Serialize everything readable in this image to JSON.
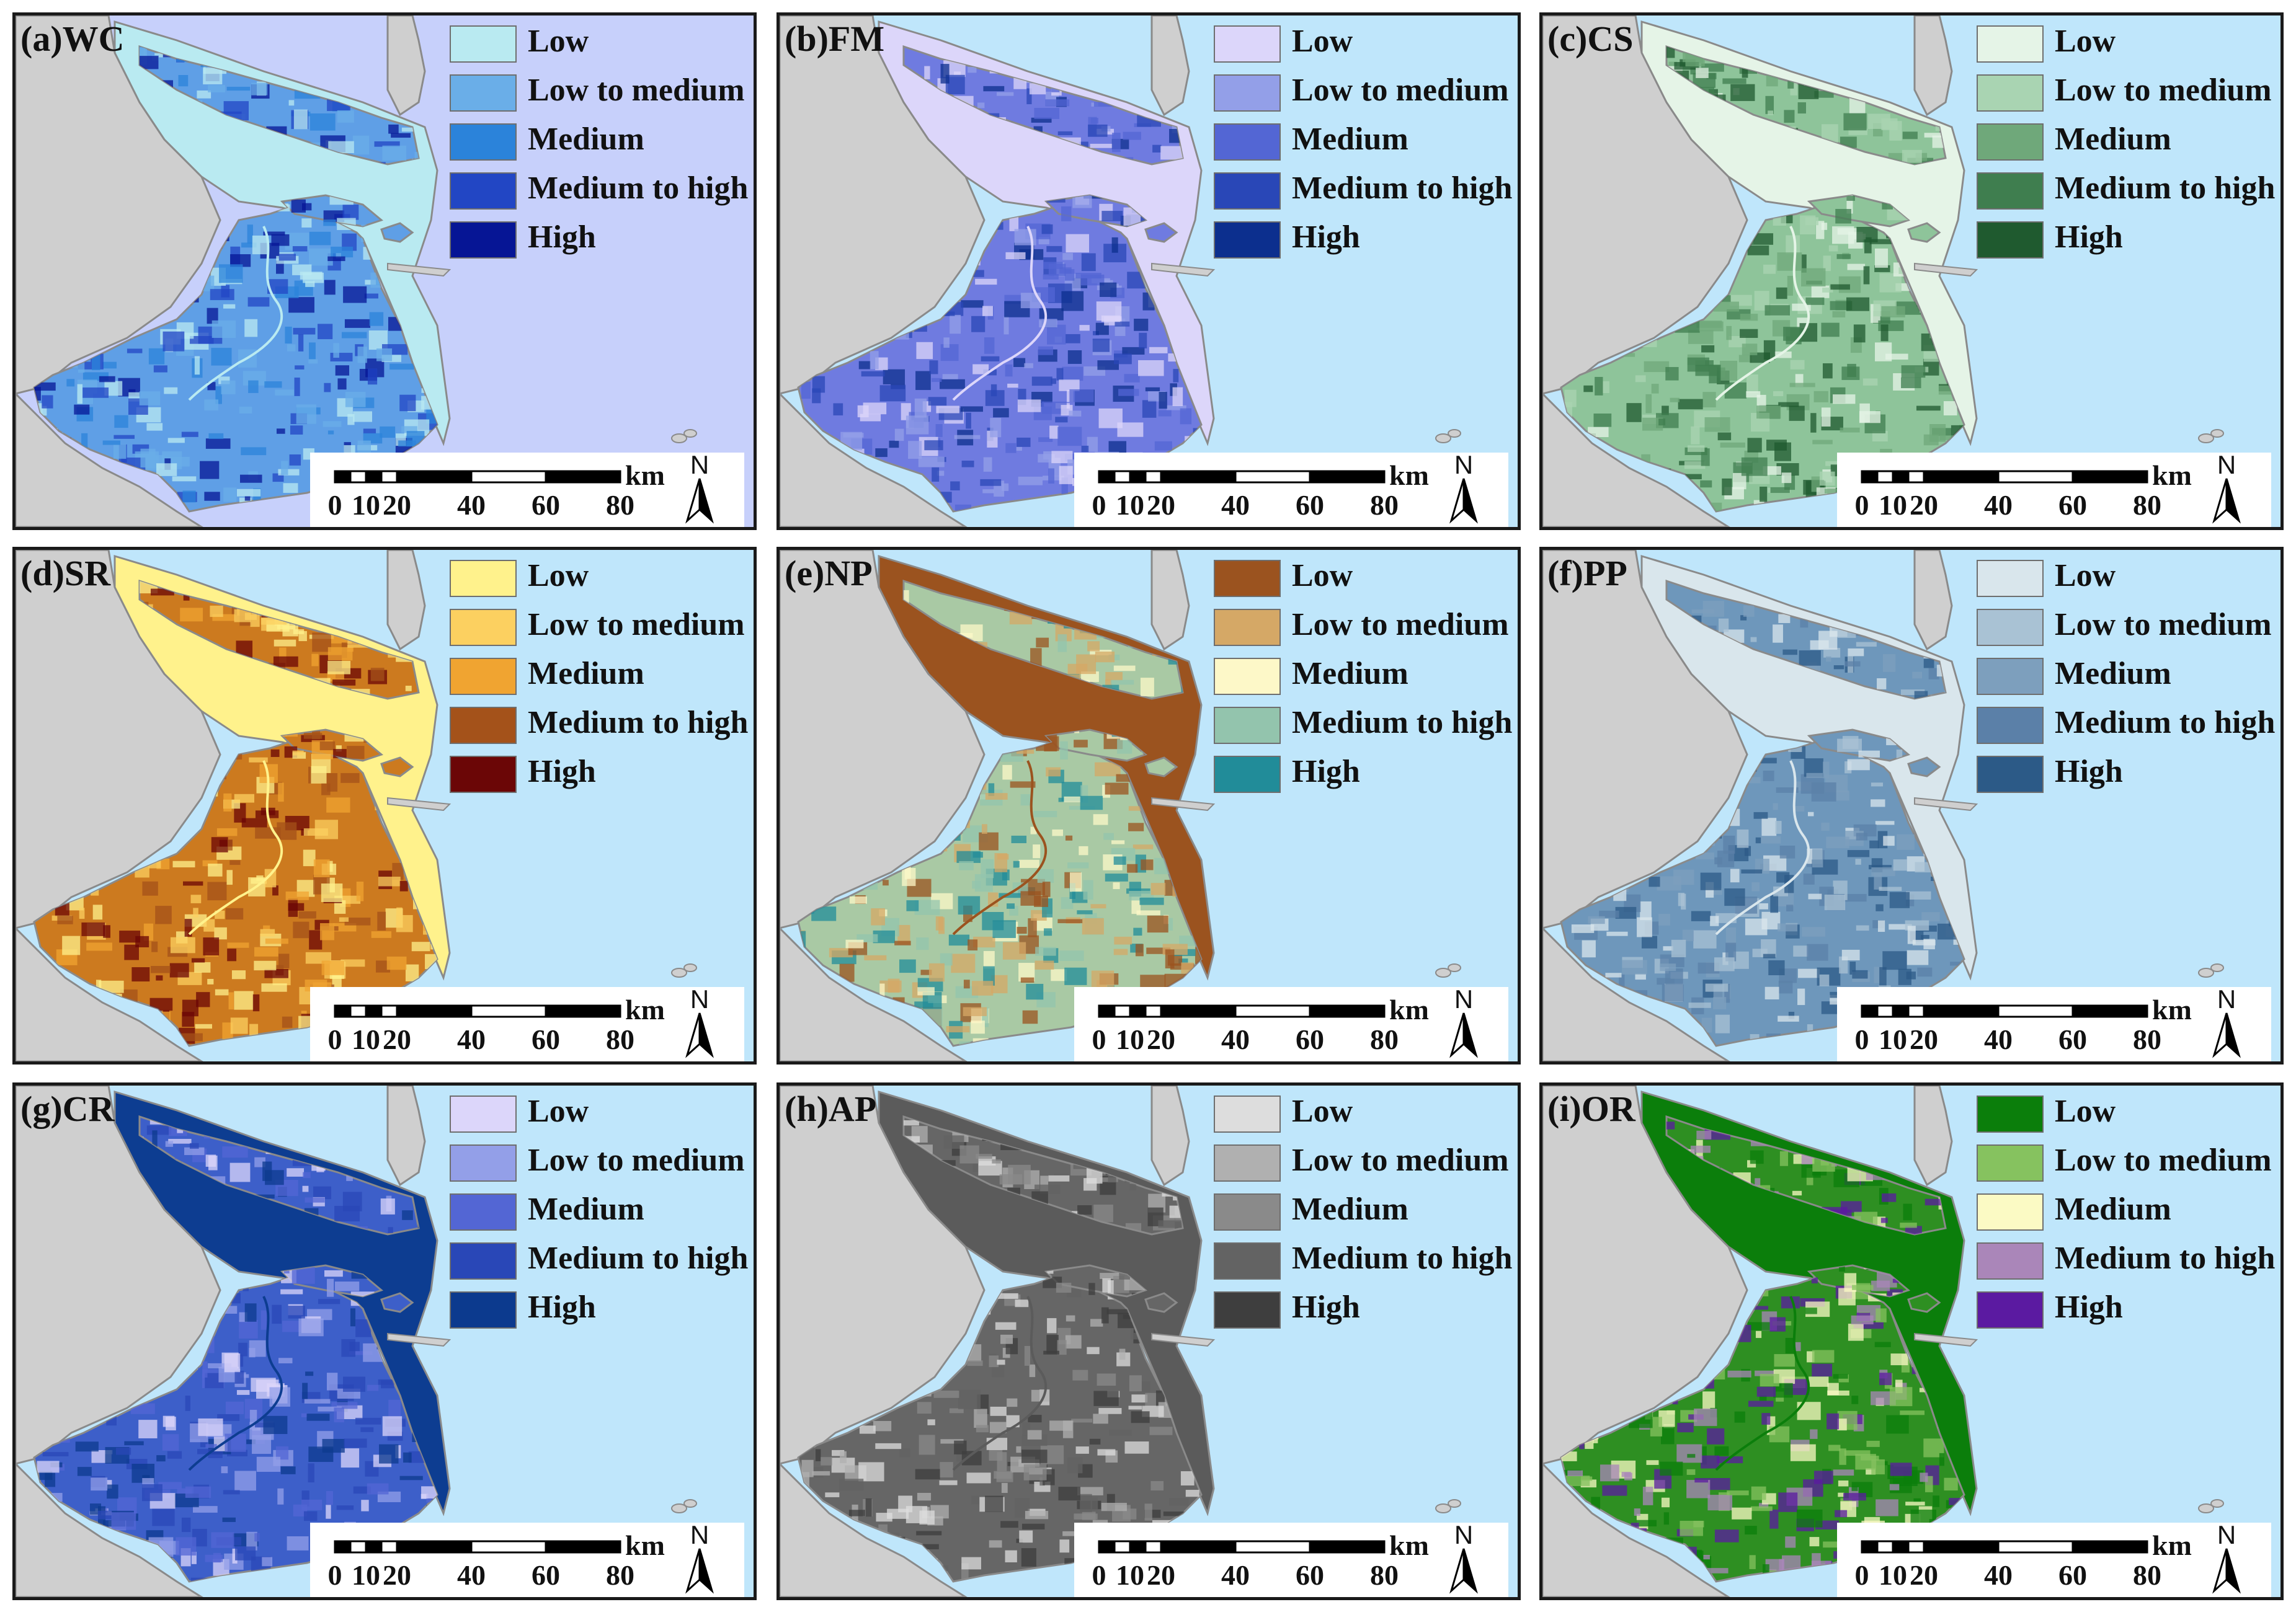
{
  "legend_labels": [
    "Low",
    "Low to medium",
    "Medium",
    "Medium to high",
    "High"
  ],
  "scale": {
    "unit": "km",
    "ticks": [
      "0",
      "10",
      "20",
      "40",
      "60",
      "80"
    ],
    "north": "N"
  },
  "colors": {
    "sea": "#bfe6fb",
    "land_outside": "#cfcfcf",
    "border": "#8a8a8a"
  },
  "panels": [
    {
      "title": "(a)WC",
      "sea": "#c7d0fb",
      "base": "#5f9fe6",
      "river": "#b9eaf1",
      "swatches": [
        "#b9eaf1",
        "#6aaee8",
        "#2b83da",
        "#2246c4",
        "#061595"
      ]
    },
    {
      "title": "(b)FM",
      "sea": "#bfe6fb",
      "base": "#6f7be0",
      "river": "#dcd6fa",
      "swatches": [
        "#dcd6fa",
        "#939fe8",
        "#5366d4",
        "#2947b7",
        "#0c2f8e"
      ]
    },
    {
      "title": "(c)CS",
      "sea": "#bfe6fb",
      "base": "#8ec49a",
      "river": "#e5f4e7",
      "swatches": [
        "#e5f4e7",
        "#a9d4b2",
        "#6fa87a",
        "#3f7e4f",
        "#1f5a2f"
      ]
    },
    {
      "title": "(d)SR",
      "sea": "#bfe6fb",
      "base": "#cc7a1f",
      "river": "#fff28c",
      "swatches": [
        "#fff28c",
        "#fcd060",
        "#f0a431",
        "#a4521a",
        "#6b0606"
      ]
    },
    {
      "title": "(e)NP",
      "sea": "#bfe6fb",
      "base": "#a9c9a4",
      "river": "#9b531f",
      "swatches": [
        "#9b531f",
        "#d5a866",
        "#fdf8c8",
        "#93c4ad",
        "#218c99"
      ]
    },
    {
      "title": "(f)PP",
      "sea": "#bfe6fb",
      "base": "#6e97bb",
      "river": "#d9e6ec",
      "swatches": [
        "#d9e6ec",
        "#a9c2d4",
        "#7d9fbd",
        "#5b80a8",
        "#2c5a87"
      ]
    },
    {
      "title": "(g)CR",
      "sea": "#bfe6fb",
      "base": "#3d5fc9",
      "river": "#0d3d91",
      "swatches": [
        "#dcd6fa",
        "#939fe8",
        "#5366d4",
        "#2947b7",
        "#0c3a8e"
      ]
    },
    {
      "title": "(h)AP",
      "sea": "#bfe6fb",
      "base": "#666666",
      "river": "#5b5b5b",
      "swatches": [
        "#dddddd",
        "#b0b0b0",
        "#8a8a8a",
        "#636363",
        "#3e3e3e"
      ]
    },
    {
      "title": "(i)OR",
      "sea": "#bfe6fb",
      "base": "#2e8f22",
      "river": "#0b7e0b",
      "swatches": [
        "#0b7e0b",
        "#86c25f",
        "#fbfac4",
        "#aa86b9",
        "#5b1aa1"
      ]
    }
  ]
}
